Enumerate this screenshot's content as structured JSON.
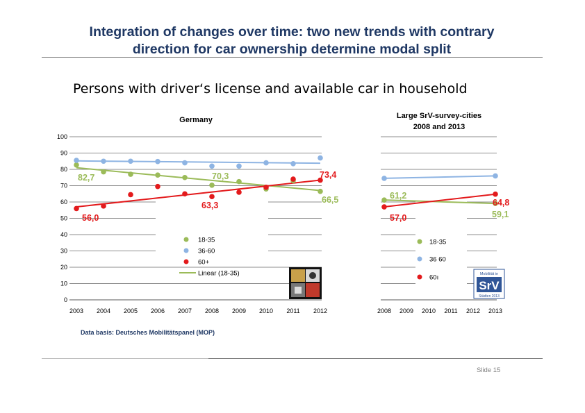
{
  "header": {
    "title_line1": "Integration of changes over time: two new trends with contrary",
    "title_line2": "direction for car ownership determine modal split",
    "subtitle": "Persons with driver‘s license and available car in household"
  },
  "footer": {
    "data_basis": "Data basis: Deutsches Mobilitätspanel (MOP)",
    "slide_label": "Slide 15"
  },
  "colors": {
    "green": "#9bbb59",
    "blue": "#8eb4e3",
    "red": "#e31a1c",
    "title": "#1f3864"
  },
  "logos": {
    "germany_logo": "mop-logo-image",
    "srv_logo_caption_top": "Mobilität in",
    "srv_logo_text": "SrV",
    "srv_logo_caption_bottom": "Städten 2013"
  },
  "chart_data": [
    {
      "type": "scatter",
      "title": "Germany",
      "xlabel": "",
      "ylabel": "",
      "categories": [
        "2003",
        "2004",
        "2005",
        "2006",
        "2007",
        "2008",
        "2009",
        "2010",
        "2011",
        "2012"
      ],
      "ylim": [
        0,
        100
      ],
      "yticks": [
        "0",
        "10",
        "20",
        "30",
        "40",
        "50",
        "60",
        "70",
        "80",
        "90",
        "100"
      ],
      "grid": true,
      "legend_position": "bottom-center",
      "series": [
        {
          "name": "18-35",
          "color": "#9bbb59",
          "values": [
            82.7,
            78.5,
            77,
            76.5,
            75,
            70.3,
            72.5,
            68,
            73,
            66.5
          ]
        },
        {
          "name": "36-60",
          "color": "#8eb4e3",
          "values": [
            85.5,
            85,
            85,
            84.8,
            84,
            82,
            82,
            84,
            83.5,
            87
          ]
        },
        {
          "name": "60+",
          "color": "#e31a1c",
          "values": [
            56,
            57.5,
            64.5,
            69.5,
            65,
            63.3,
            66,
            69,
            74,
            73.4
          ]
        }
      ],
      "trendlines": [
        {
          "name": "Linear (18-35)",
          "color": "#9bbb59",
          "start": 81,
          "end": 67,
          "show_in_legend": true
        },
        {
          "name": "36-60",
          "color": "#8eb4e3",
          "start": 85.2,
          "end": 83.8,
          "show_in_legend": false
        },
        {
          "name": "60+",
          "color": "#e31a1c",
          "start": 57,
          "end": 73.4,
          "show_in_legend": false
        }
      ],
      "annotations": [
        {
          "text": "82,7",
          "color": "#9bbb59"
        },
        {
          "text": "70,3",
          "color": "#9bbb59"
        },
        {
          "text": "66,5",
          "color": "#9bbb59"
        },
        {
          "text": "73,4",
          "color": "#e31a1c"
        },
        {
          "text": "63,3",
          "color": "#e31a1c"
        },
        {
          "text": "56,0",
          "color": "#e31a1c"
        }
      ]
    },
    {
      "type": "scatter",
      "title": "Large SrV-survey-cities",
      "subtitle": "2008 and 2013",
      "xlabel": "",
      "ylabel": "",
      "categories": [
        "2008",
        "2009",
        "2010",
        "2011",
        "2012",
        "2013"
      ],
      "ylim": [
        0,
        100
      ],
      "grid": true,
      "legend_position": "bottom-center",
      "series": [
        {
          "name": "18-35",
          "color": "#9bbb59",
          "points": [
            {
              "x": "2008",
              "y": 61.2
            },
            {
              "x": "2013",
              "y": 59.1
            }
          ]
        },
        {
          "name": "36 60",
          "color": "#8eb4e3",
          "points": [
            {
              "x": "2008",
              "y": 74.5
            },
            {
              "x": "2013",
              "y": 76
            }
          ]
        },
        {
          "name": "60ı",
          "color": "#e31a1c",
          "points": [
            {
              "x": "2008",
              "y": 57
            },
            {
              "x": "2013",
              "y": 64.8
            }
          ]
        }
      ],
      "annotations": [
        {
          "text": "61,2",
          "color": "#9bbb59"
        },
        {
          "text": "59,1",
          "color": "#9bbb59"
        },
        {
          "text": "57,0",
          "color": "#e31a1c"
        },
        {
          "text": "64,8",
          "color": "#e31a1c"
        }
      ]
    }
  ]
}
